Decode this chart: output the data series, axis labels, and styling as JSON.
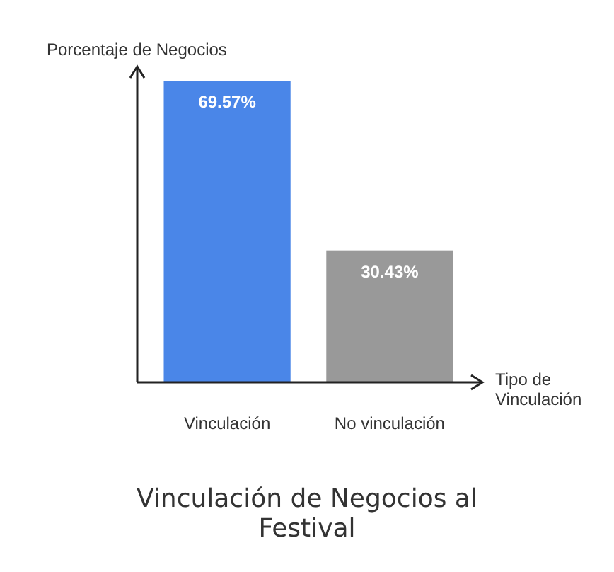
{
  "chart_data": {
    "type": "bar",
    "title": "Vinculación de Negocios al Festival",
    "xlabel": "Tipo de Vinculación",
    "ylabel": "Porcentaje de Negocios",
    "categories": [
      "Vinculación",
      "No vinculación"
    ],
    "values": [
      69.57,
      30.43
    ],
    "colors": [
      "#4a86e8",
      "#999999"
    ],
    "value_labels": [
      "69.57%",
      "30.43%"
    ]
  }
}
